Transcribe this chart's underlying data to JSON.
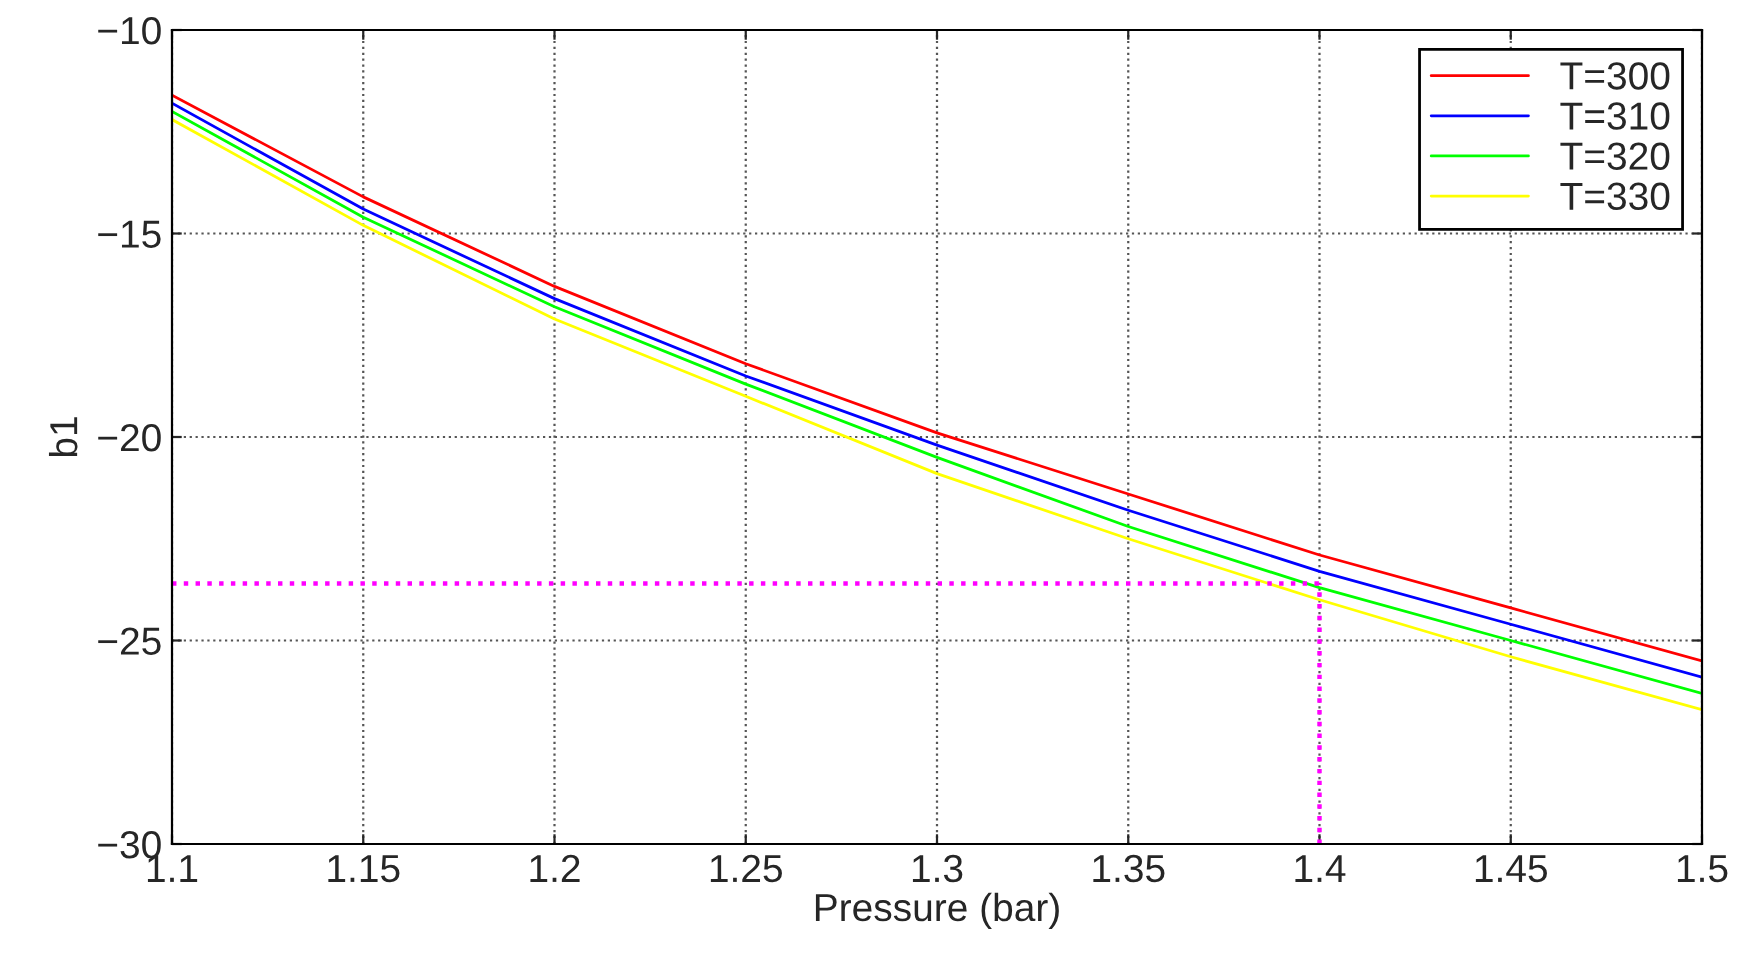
{
  "chart_data": {
    "type": "line",
    "xlabel": "Pressure (bar)",
    "ylabel": "b1",
    "x": [
      1.1,
      1.15,
      1.2,
      1.25,
      1.3,
      1.35,
      1.4,
      1.45,
      1.5
    ],
    "series": [
      {
        "name": "T=300",
        "color": "#ff0000",
        "values": [
          -11.6,
          -14.1,
          -16.3,
          -18.2,
          -19.9,
          -21.4,
          -22.9,
          -24.2,
          -25.5
        ]
      },
      {
        "name": "T=310",
        "color": "#0000ff",
        "values": [
          -11.8,
          -14.4,
          -16.6,
          -18.5,
          -20.2,
          -21.8,
          -23.3,
          -24.6,
          -25.9
        ]
      },
      {
        "name": "T=320",
        "color": "#00ff00",
        "values": [
          -12.0,
          -14.6,
          -16.8,
          -18.7,
          -20.5,
          -22.2,
          -23.7,
          -25.0,
          -26.3
        ]
      },
      {
        "name": "T=330",
        "color": "#ffff00",
        "values": [
          -12.2,
          -14.8,
          -17.1,
          -19.0,
          -20.9,
          -22.5,
          -24.0,
          -25.4,
          -26.7
        ]
      }
    ],
    "ref_lines": [
      {
        "axis": "y",
        "value": -23.6,
        "color": "#ff00ff",
        "line_style": "dotted"
      },
      {
        "axis": "x",
        "value": 1.4,
        "color": "#ff00ff",
        "line_style": "dotted"
      }
    ],
    "xlim": [
      1.1,
      1.5
    ],
    "xticks": [
      1.1,
      1.15,
      1.2,
      1.25,
      1.3,
      1.35,
      1.4,
      1.45,
      1.5
    ],
    "ylim": [
      -30,
      -10
    ],
    "yticks": [
      {
        "value": -30,
        "label": "−30"
      },
      {
        "value": -25,
        "label": "−25"
      },
      {
        "value": -20,
        "label": "−20"
      },
      {
        "value": -15,
        "label": "−15"
      },
      {
        "value": -10,
        "label": "−10"
      }
    ],
    "grid": true,
    "legend": "top right",
    "line_style": "solid"
  }
}
